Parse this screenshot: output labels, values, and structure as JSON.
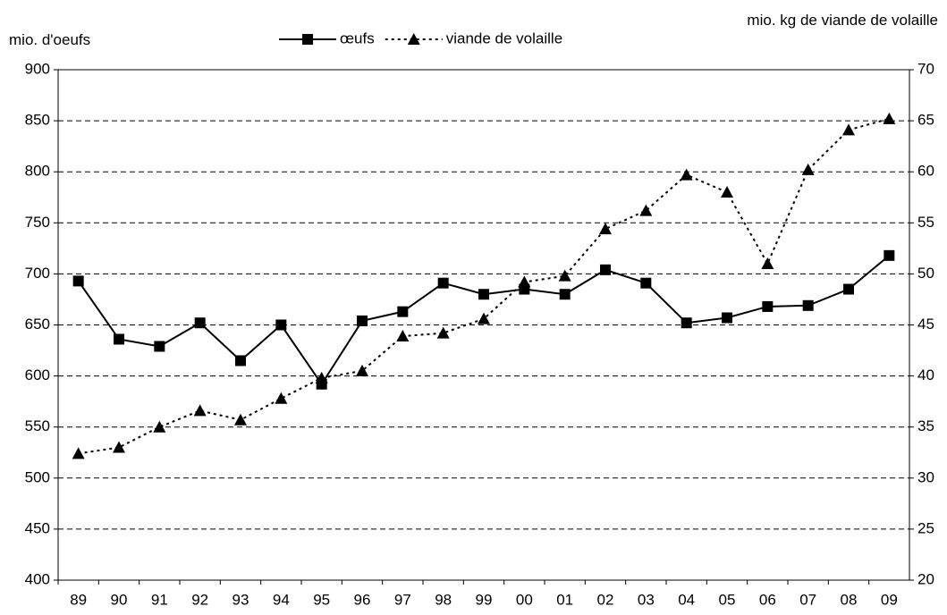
{
  "chart_data": {
    "type": "line",
    "y_label": "mio. d'oeufs",
    "y2_label": "mio. kg de viande de volaille",
    "categories": [
      "89",
      "90",
      "91",
      "92",
      "93",
      "94",
      "95",
      "96",
      "97",
      "98",
      "99",
      "00",
      "01",
      "02",
      "03",
      "04",
      "05",
      "06",
      "07",
      "08",
      "09"
    ],
    "series": [
      {
        "name": "œufs",
        "color": "#000000",
        "marker": "square",
        "dash": "solid",
        "values": [
          693,
          636,
          629,
          652,
          615,
          650,
          592,
          654,
          663,
          691,
          680,
          685,
          680,
          704,
          691,
          652,
          657,
          668,
          669,
          685,
          718
        ]
      },
      {
        "name": "viande de volaille",
        "color": "#000000",
        "marker": "triangle",
        "dash": "dotted",
        "axis": "y2",
        "values": [
          32.4,
          33.0,
          35.0,
          36.6,
          35.7,
          37.8,
          39.8,
          40.5,
          43.9,
          44.2,
          45.6,
          49.2,
          49.8,
          54.4,
          56.2,
          59.7,
          58.0,
          51.0,
          60.2,
          64.1,
          65.2
        ]
      }
    ],
    "ylim": [
      400,
      900
    ],
    "yticks": [
      400,
      450,
      500,
      550,
      600,
      650,
      700,
      750,
      800,
      850,
      900
    ],
    "y2lim": [
      20,
      70
    ],
    "y2ticks": [
      20,
      25,
      30,
      35,
      40,
      45,
      50,
      55,
      60,
      65,
      70
    ],
    "grid": true,
    "legend": "top"
  }
}
